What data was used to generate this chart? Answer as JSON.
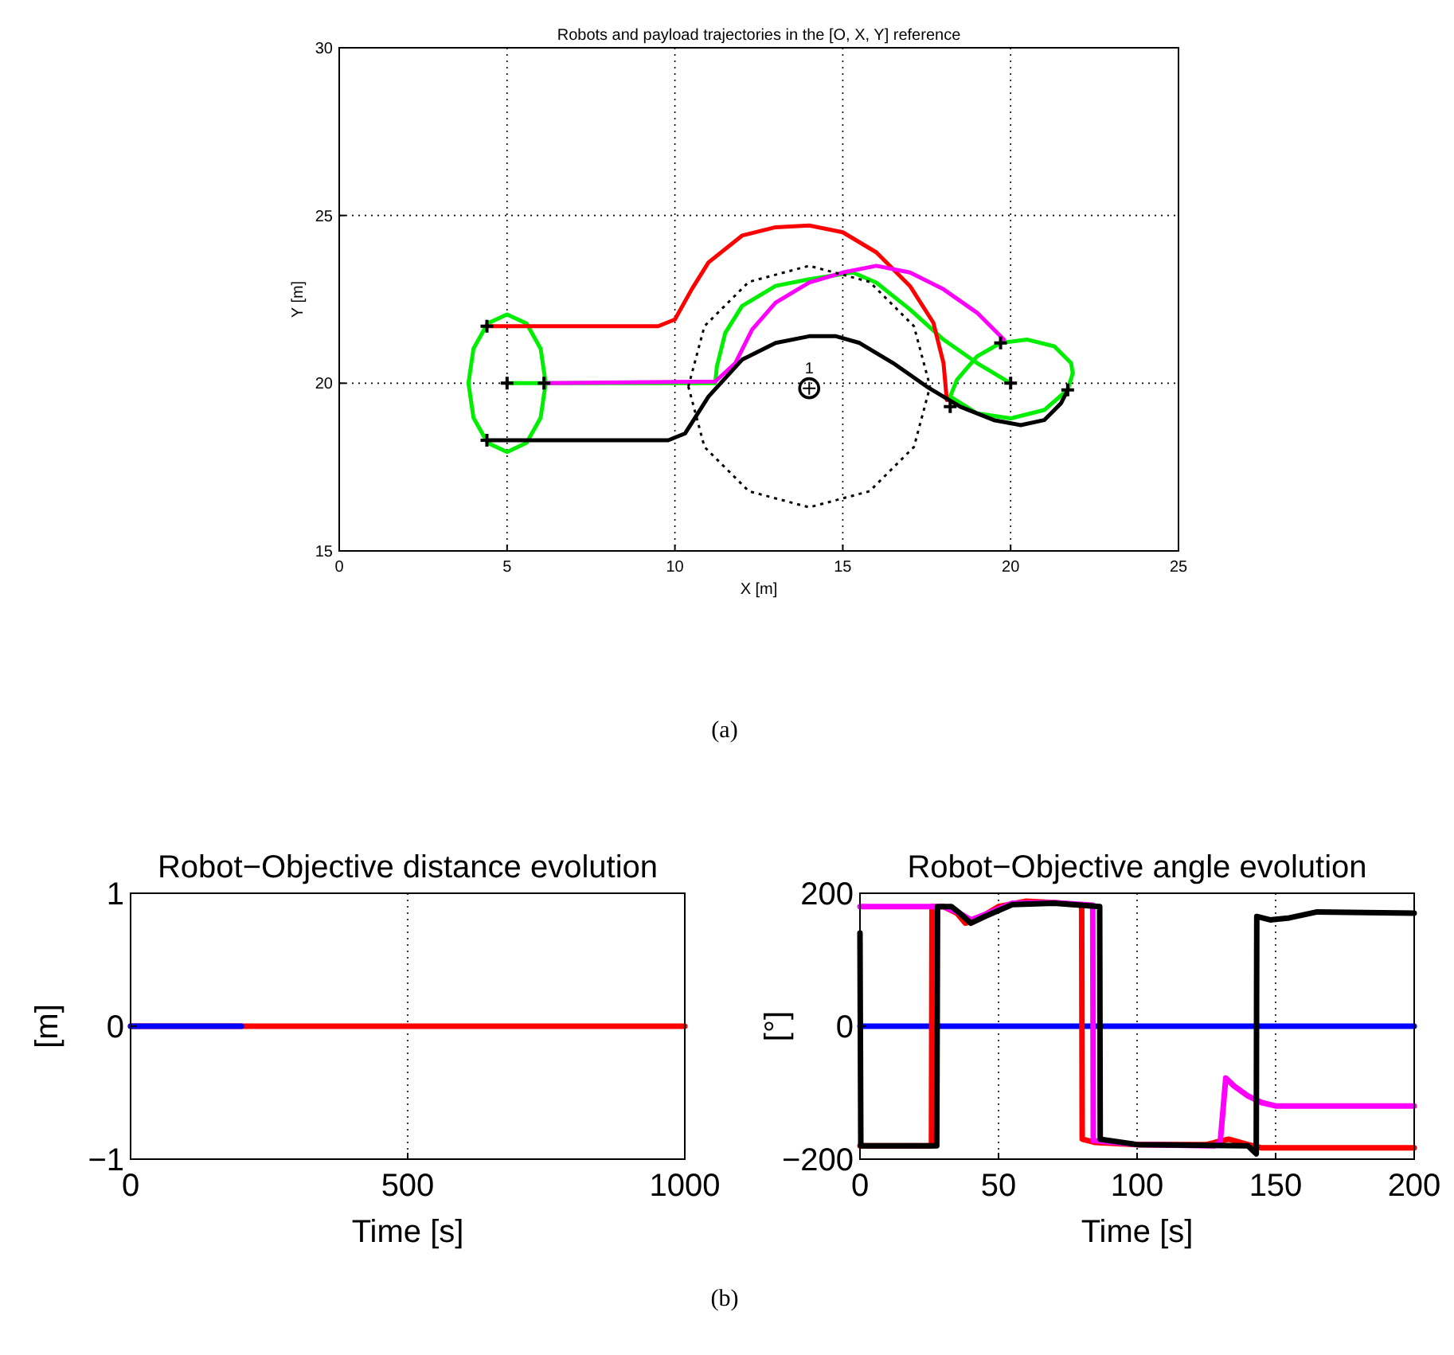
{
  "chart_data": [
    {
      "type": "line",
      "title": "Robots and payload trajectories in the [O, X, Y] reference",
      "xlabel": "X [m]",
      "ylabel": "Y [m]",
      "xlim": [
        0,
        25
      ],
      "ylim": [
        15,
        30
      ],
      "xticks": [
        0,
        5,
        10,
        15,
        20,
        25
      ],
      "yticks": [
        15,
        20,
        25,
        30
      ],
      "grid": true,
      "series": [
        {
          "color": "#00ee00",
          "x": [
            3.85,
            4.0,
            4.42,
            5,
            5.58,
            6.0,
            6.15,
            null,
            3.85,
            4.0,
            4.42,
            5,
            5.58,
            6.0,
            6.15
          ],
          "values": [
            20,
            21.03,
            21.78,
            22.05,
            21.78,
            21.03,
            20,
            null,
            20,
            18.97,
            18.22,
            17.95,
            18.22,
            18.97,
            20
          ]
        },
        {
          "color": "#00ee00",
          "x": [
            5,
            6.1,
            11.2,
            11.25,
            11.5,
            12,
            13,
            14,
            15.3,
            16,
            17,
            18,
            19,
            20
          ],
          "values": [
            20,
            20,
            20,
            20.5,
            21.5,
            22.3,
            22.9,
            23.1,
            23.3,
            23,
            22.2,
            21.3,
            20.6,
            20
          ]
        },
        {
          "color": "#00ee00",
          "x": [
            18.2,
            19,
            20,
            21,
            21.7,
            21.85
          ],
          "values": [
            19.6,
            19.1,
            18.95,
            19.2,
            19.8,
            20.3
          ]
        },
        {
          "color": "#00ee00",
          "x": [
            21.85,
            21.8,
            21.3,
            20.5,
            19.7,
            19,
            18.4,
            18.2
          ],
          "values": [
            20.3,
            20.6,
            21.1,
            21.3,
            21.2,
            20.8,
            20.1,
            19.6
          ]
        },
        {
          "color": "#ff0000",
          "x": [
            4.4,
            9.5,
            10,
            10.5,
            11,
            12,
            13,
            14,
            15,
            16,
            17,
            17.7,
            18,
            18.1
          ],
          "values": [
            21.7,
            21.7,
            21.9,
            22.8,
            23.6,
            24.4,
            24.65,
            24.7,
            24.5,
            23.9,
            22.9,
            21.8,
            20.6,
            19.5
          ]
        },
        {
          "color": "#ff00ff",
          "x": [
            6.1,
            11.2,
            11.8,
            12.3,
            13,
            14,
            15,
            16,
            17,
            18,
            19,
            19.8
          ],
          "values": [
            20,
            20.05,
            20.6,
            21.6,
            22.4,
            23,
            23.3,
            23.5,
            23.3,
            22.8,
            22.1,
            21.3
          ]
        },
        {
          "color": "#000000",
          "x": [
            4.4,
            9.8,
            10.3,
            11,
            12,
            13,
            14,
            14.8,
            15.5,
            16.5,
            17.5,
            18.5,
            19.5,
            20.3,
            21,
            21.5,
            21.7
          ],
          "values": [
            18.3,
            18.3,
            18.5,
            19.6,
            20.7,
            21.2,
            21.4,
            21.4,
            21.2,
            20.6,
            19.9,
            19.3,
            18.9,
            18.75,
            18.9,
            19.4,
            19.8
          ]
        },
        {
          "color": "#000000",
          "line_style": "dotted",
          "x": [
            10.4,
            10.88,
            12.2,
            14,
            15.8,
            17.12,
            17.6
          ],
          "values": [
            19.9,
            21.7,
            23.02,
            23.5,
            23.02,
            21.7,
            19.9
          ]
        },
        {
          "color": "#000000",
          "line_style": "dotted",
          "x": [
            10.4,
            10.88,
            12.2,
            14,
            15.8,
            17.12,
            17.6
          ],
          "values": [
            19.9,
            18.1,
            16.78,
            16.3,
            16.78,
            18.1,
            19.9
          ]
        },
        {
          "type": "scatter",
          "marker": "cross",
          "color": "#000000",
          "x": [
            4.4,
            5,
            6.1,
            4.4,
            19.7,
            20,
            18.2,
            21.7
          ],
          "values": [
            21.7,
            20,
            20,
            18.3,
            21.2,
            20,
            19.3,
            19.8
          ]
        },
        {
          "type": "scatter",
          "marker": "circle",
          "color": "#000000",
          "x": [
            14
          ],
          "values": [
            19.85
          ]
        }
      ],
      "annotations": [
        {
          "text": "1",
          "x": 14,
          "y": 20.3
        },
        "(a)"
      ]
    },
    {
      "type": "line",
      "title": "Robot−Objective distance evolution",
      "xlabel": "Time [s]",
      "ylabel": "[m]",
      "xlim": [
        0,
        1000
      ],
      "ylim": [
        -1,
        1
      ],
      "xticks": [
        0,
        500,
        1000
      ],
      "yticks": [
        -1,
        0,
        1
      ],
      "grid": "x",
      "series": [
        {
          "color": "#ff0000",
          "x": [
            0,
            1000
          ],
          "values": [
            0,
            0
          ]
        },
        {
          "color": "#0000ff",
          "x": [
            0,
            200
          ],
          "values": [
            0,
            0
          ]
        }
      ],
      "annotations": [
        "(b)"
      ]
    },
    {
      "type": "line",
      "title": "Robot−Objective angle evolution",
      "xlabel": "Time [s]",
      "ylabel": "[°]",
      "xlim": [
        0,
        200
      ],
      "ylim": [
        -200,
        200
      ],
      "xticks": [
        0,
        50,
        100,
        150,
        200
      ],
      "yticks": [
        -200,
        0,
        200
      ],
      "grid": "x",
      "series": [
        {
          "color": "#0000ff",
          "x": [
            0,
            200
          ],
          "values": [
            0,
            0
          ]
        },
        {
          "color": "#ff0000",
          "x": [
            0,
            25.8,
            26,
            30,
            35,
            38,
            42,
            50,
            60,
            70,
            80,
            80.2,
            85,
            100,
            125,
            133,
            140,
            145,
            200
          ],
          "values": [
            -180,
            -180,
            180,
            180,
            170,
            155,
            160,
            180,
            188,
            186,
            182,
            -170,
            -175,
            -178,
            -178,
            -170,
            -178,
            -183,
            -183
          ]
        },
        {
          "color": "#ff00ff",
          "x": [
            0,
            30,
            35,
            40,
            45,
            55,
            70,
            84,
            84.2,
            100,
            128,
            130,
            132,
            135,
            140,
            145,
            150,
            200
          ],
          "values": [
            180,
            180,
            172,
            160,
            168,
            185,
            186,
            182,
            -172,
            -178,
            -180,
            -175,
            -78,
            -90,
            -105,
            -115,
            -120,
            -120
          ]
        },
        {
          "color": "#000000",
          "x": [
            0,
            0.3,
            27.7,
            28,
            33,
            36,
            40,
            45,
            55,
            70,
            86.5,
            86.7,
            100,
            140,
            143,
            143.2,
            148,
            155,
            165,
            200
          ],
          "values": [
            140,
            -180,
            -180,
            180,
            180,
            170,
            155,
            165,
            183,
            185,
            180,
            -170,
            -178,
            -180,
            -192,
            165,
            160,
            163,
            172,
            170
          ]
        }
      ]
    }
  ]
}
